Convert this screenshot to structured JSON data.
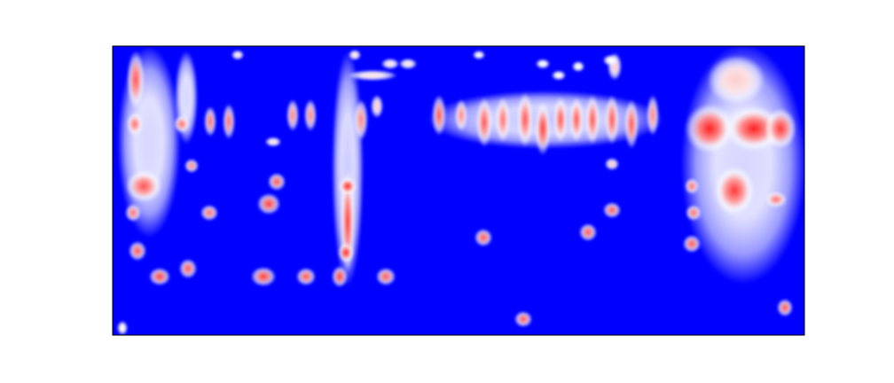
{
  "chart_data": {
    "type": "heatmap",
    "tick_labels": false,
    "xlim": [
      0,
      780
    ],
    "ylim": [
      0,
      326
    ],
    "vlim": [
      0,
      1
    ],
    "cells": [
      {
        "x": 41,
        "y": 218,
        "w": 65,
        "h": 210,
        "v": 0.42
      },
      {
        "x": 711,
        "y": 193,
        "w": 135,
        "h": 265,
        "v": 0.42
      },
      {
        "x": 265,
        "y": 188,
        "w": 30,
        "h": 260,
        "v": 0.4
      },
      {
        "x": 83,
        "y": 268,
        "w": 20,
        "h": 100,
        "v": 0.42
      },
      {
        "x": 488,
        "y": 243,
        "w": 260,
        "h": 60,
        "v": 0.38
      },
      {
        "x": 703,
        "y": 288,
        "w": 60,
        "h": 50,
        "v": 0.6
      },
      {
        "x": 26,
        "y": 288,
        "w": 14,
        "h": 60,
        "v": 0.85
      },
      {
        "x": 25,
        "y": 238,
        "w": 12,
        "h": 20,
        "v": 0.8
      },
      {
        "x": 35,
        "y": 168,
        "w": 35,
        "h": 30,
        "v": 0.85
      },
      {
        "x": 23,
        "y": 138,
        "w": 12,
        "h": 14,
        "v": 0.8
      },
      {
        "x": 28,
        "y": 95,
        "w": 14,
        "h": 16,
        "v": 0.85
      },
      {
        "x": 53,
        "y": 66,
        "w": 18,
        "h": 14,
        "v": 0.9
      },
      {
        "x": 78,
        "y": 238,
        "w": 12,
        "h": 14,
        "v": 0.8
      },
      {
        "x": 89,
        "y": 191,
        "w": 10,
        "h": 10,
        "v": 0.75
      },
      {
        "x": 85,
        "y": 75,
        "w": 14,
        "h": 16,
        "v": 0.85
      },
      {
        "x": 109,
        "y": 138,
        "w": 14,
        "h": 12,
        "v": 0.8
      },
      {
        "x": 110,
        "y": 241,
        "w": 8,
        "h": 28,
        "v": 0.8
      },
      {
        "x": 131,
        "y": 241,
        "w": 8,
        "h": 34,
        "v": 0.8
      },
      {
        "x": 141,
        "y": 316,
        "w": 8,
        "h": 5,
        "v": 0.55
      },
      {
        "x": 170,
        "y": 66,
        "w": 22,
        "h": 16,
        "v": 0.9
      },
      {
        "x": 185,
        "y": 173,
        "w": 14,
        "h": 14,
        "v": 0.85
      },
      {
        "x": 176,
        "y": 148,
        "w": 20,
        "h": 18,
        "v": 0.9
      },
      {
        "x": 218,
        "y": 66,
        "w": 16,
        "h": 14,
        "v": 0.85
      },
      {
        "x": 256,
        "y": 66,
        "w": 12,
        "h": 18,
        "v": 0.9
      },
      {
        "x": 308,
        "y": 66,
        "w": 16,
        "h": 14,
        "v": 0.85
      },
      {
        "x": 203,
        "y": 248,
        "w": 8,
        "h": 30,
        "v": 0.75
      },
      {
        "x": 223,
        "y": 248,
        "w": 8,
        "h": 30,
        "v": 0.75
      },
      {
        "x": 181,
        "y": 218,
        "w": 12,
        "h": 5,
        "v": 0.55
      },
      {
        "x": 265,
        "y": 128,
        "w": 10,
        "h": 110,
        "v": 0.9
      },
      {
        "x": 265,
        "y": 168,
        "w": 14,
        "h": 14,
        "v": 0.95
      },
      {
        "x": 263,
        "y": 93,
        "w": 12,
        "h": 16,
        "v": 0.95
      },
      {
        "x": 273,
        "y": 316,
        "w": 8,
        "h": 6,
        "v": 0.55
      },
      {
        "x": 293,
        "y": 293,
        "w": 50,
        "h": 6,
        "v": 0.55
      },
      {
        "x": 313,
        "y": 306,
        "w": 14,
        "h": 6,
        "v": 0.55
      },
      {
        "x": 333,
        "y": 306,
        "w": 14,
        "h": 6,
        "v": 0.55
      },
      {
        "x": 280,
        "y": 243,
        "w": 10,
        "h": 40,
        "v": 0.75
      },
      {
        "x": 298,
        "y": 258,
        "w": 8,
        "h": 20,
        "v": 0.6
      },
      {
        "x": 368,
        "y": 248,
        "w": 10,
        "h": 40,
        "v": 0.85
      },
      {
        "x": 393,
        "y": 248,
        "w": 8,
        "h": 30,
        "v": 0.75
      },
      {
        "x": 419,
        "y": 240,
        "w": 12,
        "h": 50,
        "v": 0.85
      },
      {
        "x": 418,
        "y": 110,
        "w": 14,
        "h": 14,
        "v": 0.85
      },
      {
        "x": 440,
        "y": 243,
        "w": 10,
        "h": 45,
        "v": 0.8
      },
      {
        "x": 465,
        "y": 243,
        "w": 12,
        "h": 55,
        "v": 0.85
      },
      {
        "x": 485,
        "y": 233,
        "w": 12,
        "h": 55,
        "v": 0.9
      },
      {
        "x": 505,
        "y": 243,
        "w": 10,
        "h": 45,
        "v": 0.85
      },
      {
        "x": 523,
        "y": 243,
        "w": 10,
        "h": 45,
        "v": 0.85
      },
      {
        "x": 541,
        "y": 243,
        "w": 10,
        "h": 50,
        "v": 0.85
      },
      {
        "x": 563,
        "y": 243,
        "w": 10,
        "h": 50,
        "v": 0.85
      },
      {
        "x": 585,
        "y": 238,
        "w": 10,
        "h": 50,
        "v": 0.85
      },
      {
        "x": 609,
        "y": 248,
        "w": 8,
        "h": 40,
        "v": 0.75
      },
      {
        "x": 463,
        "y": 18,
        "w": 14,
        "h": 12,
        "v": 0.85
      },
      {
        "x": 536,
        "y": 116,
        "w": 14,
        "h": 14,
        "v": 0.85
      },
      {
        "x": 563,
        "y": 141,
        "w": 14,
        "h": 12,
        "v": 0.85
      },
      {
        "x": 563,
        "y": 193,
        "w": 10,
        "h": 8,
        "v": 0.6
      },
      {
        "x": 566,
        "y": 303,
        "w": 10,
        "h": 25,
        "v": 0.6
      },
      {
        "x": 673,
        "y": 233,
        "w": 50,
        "h": 50,
        "v": 0.95
      },
      {
        "x": 723,
        "y": 233,
        "w": 60,
        "h": 45,
        "v": 0.95
      },
      {
        "x": 753,
        "y": 233,
        "w": 30,
        "h": 40,
        "v": 0.9
      },
      {
        "x": 701,
        "y": 163,
        "w": 40,
        "h": 50,
        "v": 0.9
      },
      {
        "x": 653,
        "y": 168,
        "w": 10,
        "h": 12,
        "v": 0.8
      },
      {
        "x": 655,
        "y": 138,
        "w": 12,
        "h": 12,
        "v": 0.8
      },
      {
        "x": 653,
        "y": 103,
        "w": 14,
        "h": 14,
        "v": 0.85
      },
      {
        "x": 748,
        "y": 153,
        "w": 18,
        "h": 12,
        "v": 0.8
      },
      {
        "x": 758,
        "y": 31,
        "w": 12,
        "h": 14,
        "v": 0.85
      },
      {
        "x": 11,
        "y": 8,
        "w": 6,
        "h": 10,
        "v": 0.5
      },
      {
        "x": 413,
        "y": 316,
        "w": 8,
        "h": 4,
        "v": 0.5
      },
      {
        "x": 485,
        "y": 306,
        "w": 10,
        "h": 5,
        "v": 0.5
      },
      {
        "x": 503,
        "y": 293,
        "w": 10,
        "h": 5,
        "v": 0.5
      },
      {
        "x": 525,
        "y": 303,
        "w": 8,
        "h": 6,
        "v": 0.5
      },
      {
        "x": 561,
        "y": 310,
        "w": 10,
        "h": 6,
        "v": 0.5
      }
    ]
  }
}
